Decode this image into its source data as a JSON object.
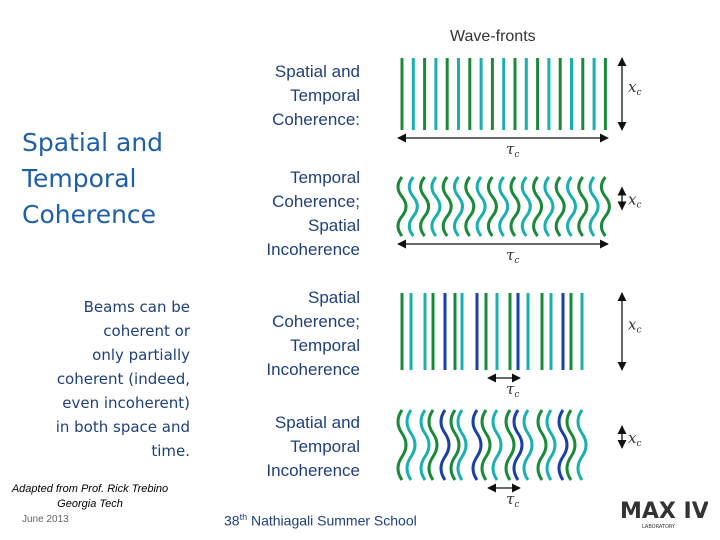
{
  "slide": {
    "title_lines": [
      "Spatial and",
      "Temporal",
      "Coherence"
    ],
    "description_lines": [
      "Beams can be",
      "coherent or",
      "only partially",
      "coherent (indeed,",
      "even incoherent)",
      "in both space and",
      "time."
    ],
    "credit_lines": [
      "Adapted from Prof. Rick Trebino",
      "Georgia Tech"
    ],
    "date": "June 2013",
    "footer_prefix": "38",
    "footer_sup": "th",
    "footer_suffix": " Nathiagali Summer School"
  },
  "diagram": {
    "heading": "Wave-fronts",
    "spatial_symbol": "x",
    "temporal_symbol": "τ",
    "symbol_subscript": "c",
    "rows": [
      {
        "label_lines": [
          "Spatial and",
          "Temporal",
          "Coherence:"
        ],
        "spatial": "coherent",
        "temporal": "coherent"
      },
      {
        "label_lines": [
          "Temporal",
          "Coherence;",
          "Spatial",
          "Incoherence"
        ],
        "spatial": "incoherent",
        "temporal": "coherent"
      },
      {
        "label_lines": [
          "Spatial",
          "Coherence;",
          "Temporal",
          "Incoherence"
        ],
        "spatial": "coherent",
        "temporal": "incoherent"
      },
      {
        "label_lines": [
          "Spatial and",
          "Temporal",
          "Incoherence"
        ],
        "spatial": "incoherent",
        "temporal": "incoherent"
      }
    ],
    "colors": {
      "green": "#1a8a3a",
      "teal": "#1ab0b0",
      "blue": "#1a3fa8"
    }
  },
  "logo": {
    "text": "MAX IV",
    "subtext": "LABORATORY"
  }
}
